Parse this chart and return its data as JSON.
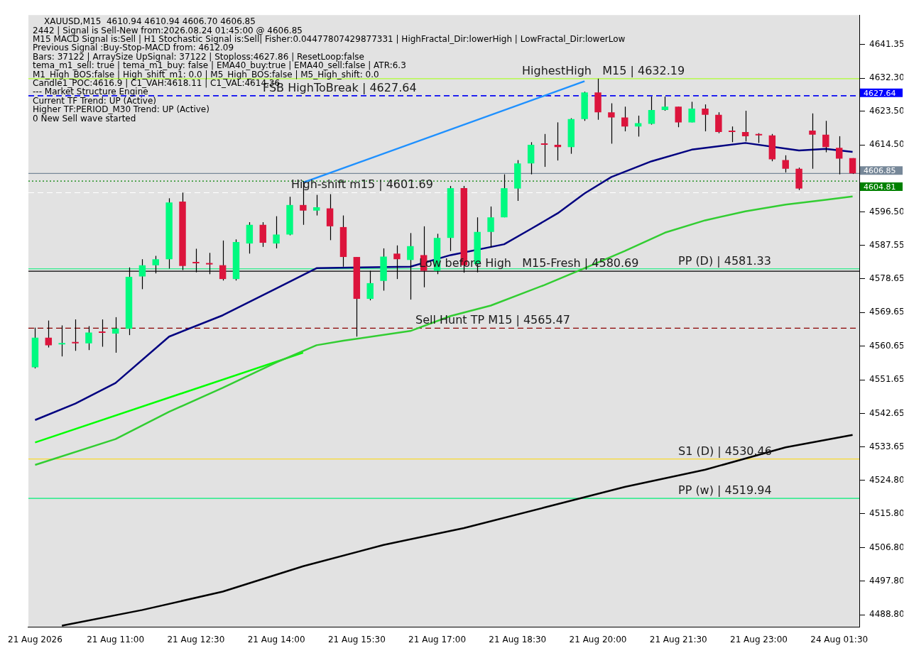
{
  "chart_data": {
    "type": "candlestick",
    "title": "XAUUSD,M15  4610.94 4610.94 4606.70 4606.85",
    "categories": [
      "21 Aug 2026",
      null,
      null,
      null,
      null,
      null,
      "21 Aug 11:00",
      null,
      null,
      null,
      null,
      null,
      "21 Aug 12:30",
      null,
      null,
      null,
      null,
      null,
      "21 Aug 14:00",
      null,
      null,
      null,
      null,
      null,
      "21 Aug 15:30",
      null,
      null,
      null,
      null,
      null,
      "21 Aug 17:00",
      null,
      null,
      null,
      null,
      null,
      "21 Aug 18:30",
      null,
      null,
      null,
      null,
      null,
      "21 Aug 20:00",
      null,
      null,
      null,
      null,
      null,
      "21 Aug 21:30",
      null,
      null,
      null,
      null,
      null,
      "21 Aug 23:00",
      null,
      null,
      null,
      null,
      null,
      "24 Aug 01:30",
      null
    ],
    "ohlc": [
      [
        4555.0,
        4565.6,
        4554.7,
        4562.9
      ],
      [
        4562.9,
        4567.5,
        4560.3,
        4560.9
      ],
      [
        4561.1,
        4566.2,
        4557.9,
        4561.4
      ],
      [
        4561.4,
        4567.8,
        4559.4,
        4561.4
      ],
      [
        4561.4,
        4566.0,
        4559.6,
        4564.3
      ],
      [
        4564.2,
        4567.8,
        4560.5,
        4564.2
      ],
      [
        4564.0,
        4568.4,
        4558.9,
        4565.4
      ],
      [
        4565.3,
        4581.7,
        4563.6,
        4579.2
      ],
      [
        4579.3,
        4583.9,
        4575.9,
        4582.3
      ],
      [
        4582.3,
        4584.8,
        4580.1,
        4583.9
      ],
      [
        4583.9,
        4600.2,
        4581.4,
        4599.1
      ],
      [
        4599.3,
        4601.7,
        4581.0,
        4582.1
      ],
      [
        4583.0,
        4586.7,
        4580.4,
        4582.8
      ],
      [
        4582.8,
        4585.6,
        4579.9,
        4582.5
      ],
      [
        4582.3,
        4588.9,
        4578.2,
        4578.6
      ],
      [
        4578.6,
        4589.2,
        4578.2,
        4588.5
      ],
      [
        4588.1,
        4593.8,
        4585.4,
        4593.1
      ],
      [
        4593.1,
        4593.8,
        4587.2,
        4588.3
      ],
      [
        4588.1,
        4595.4,
        4586.8,
        4590.5
      ],
      [
        4590.5,
        4600.6,
        4590.3,
        4598.4
      ],
      [
        4598.4,
        4604.8,
        4593.1,
        4596.9
      ],
      [
        4596.9,
        4601.1,
        4595.6,
        4597.8
      ],
      [
        4597.5,
        4601.3,
        4589.0,
        4592.7
      ],
      [
        4592.5,
        4595.6,
        4581.9,
        4584.5
      ],
      [
        4584.5,
        4584.5,
        4563.2,
        4573.3
      ],
      [
        4573.3,
        4580.8,
        4572.9,
        4577.5
      ],
      [
        4578.1,
        4586.8,
        4575.5,
        4584.6
      ],
      [
        4585.4,
        4587.6,
        4578.6,
        4583.9
      ],
      [
        4583.7,
        4590.9,
        4573.1,
        4587.4
      ],
      [
        4585.0,
        4592.7,
        4576.4,
        4580.8
      ],
      [
        4580.8,
        4590.7,
        4579.9,
        4589.6
      ],
      [
        4589.6,
        4603.5,
        4586.1,
        4602.9
      ],
      [
        4602.9,
        4603.5,
        4580.3,
        4582.3
      ],
      [
        4582.6,
        4595.1,
        4580.4,
        4591.2
      ],
      [
        4591.2,
        4598.0,
        4587.0,
        4595.1
      ],
      [
        4595.1,
        4606.6,
        4595.1,
        4602.9
      ],
      [
        4602.8,
        4610.4,
        4599.5,
        4609.5
      ],
      [
        4609.5,
        4615.2,
        4606.6,
        4614.5
      ],
      [
        4614.5,
        4617.4,
        4608.6,
        4614.5
      ],
      [
        4614.5,
        4620.5,
        4610.3,
        4613.9
      ],
      [
        4613.9,
        4621.6,
        4612.1,
        4621.4
      ],
      [
        4621.4,
        4628.7,
        4620.9,
        4628.5
      ],
      [
        4628.5,
        4632.19,
        4621.2,
        4623.2
      ],
      [
        4623.2,
        4625.6,
        4614.8,
        4621.8
      ],
      [
        4621.8,
        4624.7,
        4618.1,
        4619.4
      ],
      [
        4619.4,
        4622.3,
        4616.7,
        4620.3
      ],
      [
        4620.1,
        4627.4,
        4619.9,
        4623.8
      ],
      [
        4623.8,
        4627.4,
        4623.6,
        4624.7
      ],
      [
        4624.7,
        4624.7,
        4619.2,
        4620.5
      ],
      [
        4620.5,
        4626.0,
        4620.5,
        4624.2
      ],
      [
        4624.2,
        4625.3,
        4618.1,
        4622.5
      ],
      [
        4622.5,
        4623.2,
        4617.6,
        4617.9
      ],
      [
        4617.9,
        4619.4,
        4615.2,
        4617.9
      ],
      [
        4617.9,
        4623.6,
        4615.4,
        4616.8
      ],
      [
        4617.0,
        4617.6,
        4615.0,
        4617.0
      ],
      [
        4617.0,
        4617.4,
        4610.1,
        4610.6
      ],
      [
        4610.4,
        4611.7,
        4607.1,
        4608.1
      ],
      [
        4608.1,
        4608.4,
        4602.4,
        4602.8
      ],
      [
        4618.3,
        4622.9,
        4608.1,
        4617.2
      ],
      [
        4617.2,
        4620.9,
        4612.5,
        4613.9
      ],
      [
        4613.7,
        4616.8,
        4606.6,
        4610.8
      ],
      [
        4610.94,
        4610.94,
        4606.7,
        4606.85
      ]
    ],
    "series": [
      {
        "type": "line",
        "color": "#000080",
        "values": [
          4540.9,
          null,
          null,
          4545.3,
          null,
          null,
          4550.8,
          null,
          null,
          null,
          4563.2,
          null,
          null,
          null,
          4568.9,
          null,
          null,
          null,
          4576.1,
          null,
          null,
          4581.5,
          null,
          null,
          null,
          null,
          null,
          null,
          4581.9,
          null,
          null,
          4585.0,
          null,
          null,
          null,
          4587.9,
          null,
          4592.0,
          null,
          4596.2,
          null,
          4601.5,
          null,
          4605.9,
          null,
          null,
          4610.1,
          null,
          null,
          4613.2,
          null,
          null,
          null,
          4615.0,
          null,
          null,
          null,
          4613.0,
          null,
          4613.4,
          null,
          4612.6
        ]
      },
      {
        "type": "line",
        "color": "#32cd32",
        "values": [
          4528.9,
          null,
          null,
          null,
          null,
          null,
          4535.8,
          null,
          null,
          null,
          4543.1,
          null,
          null,
          null,
          4549.5,
          null,
          null,
          null,
          4556.3,
          null,
          null,
          4560.9,
          null,
          4562.1,
          null,
          null,
          null,
          null,
          4564.7,
          null,
          null,
          4568.7,
          null,
          null,
          4571.5,
          null,
          null,
          null,
          4577.0,
          null,
          null,
          4581.5,
          null,
          null,
          4586.1,
          null,
          null,
          4591.0,
          null,
          null,
          4594.3,
          null,
          null,
          4596.7,
          null,
          null,
          4598.5,
          null,
          null,
          4599.8,
          null,
          4600.7
        ]
      },
      {
        "type": "line",
        "color": "#000000",
        "values": [
          null,
          null,
          4485.9,
          null,
          null,
          null,
          null,
          null,
          4490.1,
          null,
          null,
          null,
          null,
          null,
          4495.0,
          null,
          null,
          null,
          null,
          null,
          4501.8,
          null,
          null,
          null,
          null,
          null,
          4507.5,
          null,
          null,
          null,
          null,
          null,
          4512.0,
          null,
          null,
          null,
          null,
          null,
          4517.5,
          null,
          null,
          null,
          null,
          null,
          4523.0,
          null,
          null,
          null,
          null,
          null,
          4527.6,
          null,
          null,
          null,
          null,
          null,
          4533.6,
          null,
          null,
          null,
          null,
          4536.9
        ]
      },
      {
        "type": "line",
        "color": "#00ff00",
        "values": [
          4534.9,
          null,
          null,
          null,
          null,
          null,
          null,
          null,
          null,
          null,
          null,
          null,
          null,
          null,
          null,
          null,
          null,
          null,
          null,
          null,
          4558.9,
          null,
          null,
          null,
          null,
          null,
          null,
          null,
          null,
          null,
          null,
          null,
          null,
          null,
          null,
          null,
          null,
          null,
          null,
          null,
          null,
          null,
          null,
          null,
          null,
          null,
          null,
          null,
          null,
          null,
          null,
          null,
          null,
          null,
          null,
          null,
          null,
          null,
          null,
          null,
          null,
          null
        ]
      },
      {
        "type": "line",
        "color": "#1e90ff",
        "values": [
          null,
          null,
          null,
          null,
          null,
          null,
          null,
          null,
          null,
          null,
          null,
          null,
          null,
          null,
          null,
          null,
          null,
          null,
          null,
          null,
          4604.4,
          null,
          null,
          null,
          null,
          null,
          null,
          null,
          null,
          null,
          null,
          null,
          null,
          null,
          null,
          null,
          null,
          null,
          null,
          null,
          null,
          4631.5,
          null,
          null,
          null,
          null,
          null,
          null,
          null,
          null,
          null,
          null,
          null,
          null,
          null,
          null,
          null,
          null,
          null,
          null,
          null,
          null
        ]
      }
    ],
    "ylim": [
      4485.5,
      4649.2
    ],
    "yticks": [
      4641.35,
      {
        "value": 4632.3,
        "label": "4632.30"
      },
      {
        "value": 4623.5,
        "label": "4623.50"
      },
      {
        "value": 4614.5,
        "label": "4614.50"
      },
      {
        "value": 4596.5,
        "label": "4596.50"
      },
      4587.55,
      4578.65,
      4569.65,
      4560.65,
      4551.65,
      4542.65,
      4533.65,
      {
        "value": 4524.8,
        "label": "4524.80"
      },
      {
        "value": 4515.8,
        "label": "4515.80"
      },
      {
        "value": 4506.8,
        "label": "4506.80"
      },
      {
        "value": 4497.8,
        "label": "4497.80"
      },
      {
        "value": 4488.8,
        "label": "4488.80"
      }
    ],
    "ref_lines": [
      {
        "axis": "y",
        "value": 4627.64,
        "label": "FSB HighToBreak | 4627.64",
        "color": "#0000cd",
        "line_style": "dashed"
      },
      {
        "axis": "y",
        "value": 4632.19,
        "label": "HighestHigh   M15 | 4632.19",
        "color": "#adff2f",
        "line_style": "solid"
      },
      {
        "axis": "y",
        "value": 4601.69,
        "label": "High-shift m15 | 4601.69",
        "color": "#ffffff",
        "line_style": "dashed"
      },
      {
        "axis": "y",
        "value": 4580.69,
        "label": "Low before High   M15-Fresh | 4580.69",
        "color": "#000000",
        "line_style": "solid"
      },
      {
        "axis": "y",
        "value": 4565.47,
        "label": "Sell Hunt TP M15 | 4565.47",
        "color": "#8b0000",
        "line_style": "dashed"
      },
      {
        "axis": "y",
        "value": 4581.33,
        "label": "PP (D) | 4581.33",
        "color": "#00ee76",
        "line_style": "solid"
      },
      {
        "axis": "y",
        "value": 4530.46,
        "label": "S1 (D) | 4530.46",
        "color": "#ffd700",
        "line_style": "solid"
      },
      {
        "axis": "y",
        "value": 4519.94,
        "label": "PP (w) | 4519.94",
        "color": "#00ee76",
        "line_style": "solid"
      },
      {
        "axis": "y",
        "value": 4627.64,
        "label": "4627.64",
        "color": "#0000ff",
        "line_style": "dashed"
      },
      {
        "axis": "y",
        "value": 4606.85,
        "label": "4606.85",
        "color": "#778899",
        "line_style": "solid"
      },
      {
        "axis": "y",
        "value": 4604.81,
        "label": "4604.81",
        "color": "#008000",
        "line_style": "dotted"
      }
    ],
    "annotations": [
      "2442 | Signal is Sell-New from:2026.08.24 01:45:00 @ 4606.85",
      "M15 MACD Signal is:Sell | H1 Stochastic Signal is:Sell| Fisher:0.04477807429877331 | HighFractal_Dir:lowerHigh | LowFractal_Dir:lowerLow",
      "Previous Signal :Buy-Stop-MACD from: 4612.09",
      "Bars: 37122 | ArraySize UpSignal: 37122 | Stoploss:4627.86 | ResetLoop:false",
      "tema_m1_sell: true | tema_m1_buy: false | EMA40_buy:true | EMA40_sell:false | ATR:6.3",
      "M1_High_BOS:false | High_shift_m1: 0.0 | M5_High_BOS:false | M5_High_shift: 0.0",
      "Candle1_POC:4616.9 | C1_VAH:4618.11 | C1_VAL:4614.36",
      "--- Market Structure Engine",
      "Current TF Trend: UP (Active)",
      "Higher TF:PERIOD_M30 Trend: UP (Active)",
      "0 New Sell wave started"
    ]
  }
}
